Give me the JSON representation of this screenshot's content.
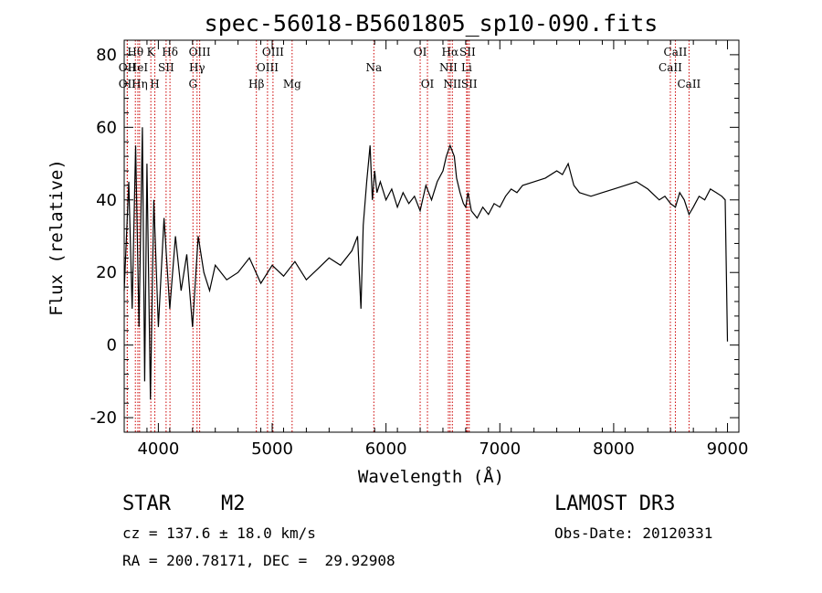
{
  "chart_data": {
    "type": "line",
    "title": "spec-56018-B5601805_sp10-090.fits",
    "xlabel": "Wavelength (Å)",
    "ylabel": "Flux (relative)",
    "xlim": [
      3700,
      9100
    ],
    "ylim": [
      -24,
      84
    ],
    "x_ticks": [
      4000,
      5000,
      6000,
      7000,
      8000,
      9000
    ],
    "y_ticks": [
      -20,
      0,
      20,
      40,
      60,
      80
    ],
    "series": [
      {
        "name": "spectrum",
        "x": [
          3700,
          3740,
          3770,
          3800,
          3830,
          3860,
          3880,
          3900,
          3930,
          3960,
          4000,
          4050,
          4100,
          4150,
          4200,
          4250,
          4300,
          4350,
          4400,
          4450,
          4500,
          4600,
          4700,
          4800,
          4900,
          5000,
          5100,
          5200,
          5300,
          5400,
          5500,
          5600,
          5700,
          5750,
          5780,
          5800,
          5830,
          5860,
          5880,
          5900,
          5920,
          5950,
          6000,
          6050,
          6100,
          6150,
          6200,
          6250,
          6300,
          6350,
          6400,
          6450,
          6500,
          6530,
          6563,
          6600,
          6620,
          6650,
          6680,
          6700,
          6720,
          6750,
          6800,
          6850,
          6900,
          6950,
          7000,
          7050,
          7100,
          7150,
          7200,
          7300,
          7400,
          7500,
          7550,
          7600,
          7650,
          7700,
          7800,
          7900,
          8000,
          8100,
          8200,
          8300,
          8400,
          8450,
          8500,
          8542,
          8580,
          8620,
          8662,
          8700,
          8750,
          8800,
          8850,
          8900,
          8950,
          8980,
          9000
        ],
        "y": [
          15,
          45,
          10,
          55,
          5,
          60,
          -10,
          50,
          -15,
          40,
          5,
          35,
          10,
          30,
          15,
          25,
          5,
          30,
          20,
          15,
          22,
          18,
          20,
          24,
          17,
          22,
          19,
          23,
          18,
          21,
          24,
          22,
          26,
          30,
          10,
          33,
          45,
          55,
          40,
          48,
          42,
          45,
          40,
          43,
          38,
          42,
          39,
          41,
          37,
          44,
          40,
          45,
          48,
          52,
          55,
          52,
          46,
          42,
          39,
          38,
          42,
          37,
          35,
          38,
          36,
          39,
          38,
          41,
          43,
          42,
          44,
          45,
          46,
          48,
          47,
          50,
          44,
          42,
          41,
          42,
          43,
          44,
          45,
          43,
          40,
          41,
          39,
          38,
          42,
          40,
          36,
          38,
          41,
          40,
          43,
          42,
          41,
          40,
          1
        ]
      }
    ],
    "spectral_lines": [
      {
        "label": "OII",
        "wavelength": 3727,
        "row": 2
      },
      {
        "label": "Hθ",
        "wavelength": 3798,
        "row": 1
      },
      {
        "label": "OII",
        "wavelength": 3727,
        "row": 3
      },
      {
        "label": "HeI",
        "wavelength": 3820,
        "row": 2
      },
      {
        "label": "Hη",
        "wavelength": 3835,
        "row": 3
      },
      {
        "label": "K",
        "wavelength": 3934,
        "row": 1
      },
      {
        "label": "SII",
        "wavelength": 4068,
        "row": 2
      },
      {
        "label": "H",
        "wavelength": 3969,
        "row": 3
      },
      {
        "label": "Hδ",
        "wavelength": 4102,
        "row": 1
      },
      {
        "label": "OIII",
        "wavelength": 4363,
        "row": 1
      },
      {
        "label": "Hγ",
        "wavelength": 4340,
        "row": 2
      },
      {
        "label": "G",
        "wavelength": 4304,
        "row": 3
      },
      {
        "label": "Hβ",
        "wavelength": 4861,
        "row": 3
      },
      {
        "label": "OIII",
        "wavelength": 5007,
        "row": 1
      },
      {
        "label": "OIII",
        "wavelength": 4959,
        "row": 2
      },
      {
        "label": "Mg",
        "wavelength": 5175,
        "row": 3
      },
      {
        "label": "Na",
        "wavelength": 5893,
        "row": 2
      },
      {
        "label": "OI",
        "wavelength": 6300,
        "row": 1
      },
      {
        "label": "OI",
        "wavelength": 6364,
        "row": 3
      },
      {
        "label": "Hα",
        "wavelength": 6563,
        "row": 1
      },
      {
        "label": "SII",
        "wavelength": 6716,
        "row": 1
      },
      {
        "label": "NII",
        "wavelength": 6548,
        "row": 2
      },
      {
        "label": "Li",
        "wavelength": 6708,
        "row": 2
      },
      {
        "label": "NII",
        "wavelength": 6583,
        "row": 3
      },
      {
        "label": "SII",
        "wavelength": 6731,
        "row": 3
      },
      {
        "label": "CaII",
        "wavelength": 8542,
        "row": 1
      },
      {
        "label": "CaII",
        "wavelength": 8498,
        "row": 2
      },
      {
        "label": "CaII",
        "wavelength": 8662,
        "row": 3
      }
    ]
  },
  "info": {
    "object_class": "STAR",
    "subclass": "M2",
    "survey": "LAMOST DR3",
    "redshift": "cz = 137.6 ± 18.0 km/s",
    "obs_date": "Obs-Date: 20120331",
    "coords": "RA = 200.78171, DEC =  29.92908"
  },
  "colors": {
    "spectrum": "#000000",
    "lines": "#cc0000",
    "axes": "#000000"
  }
}
